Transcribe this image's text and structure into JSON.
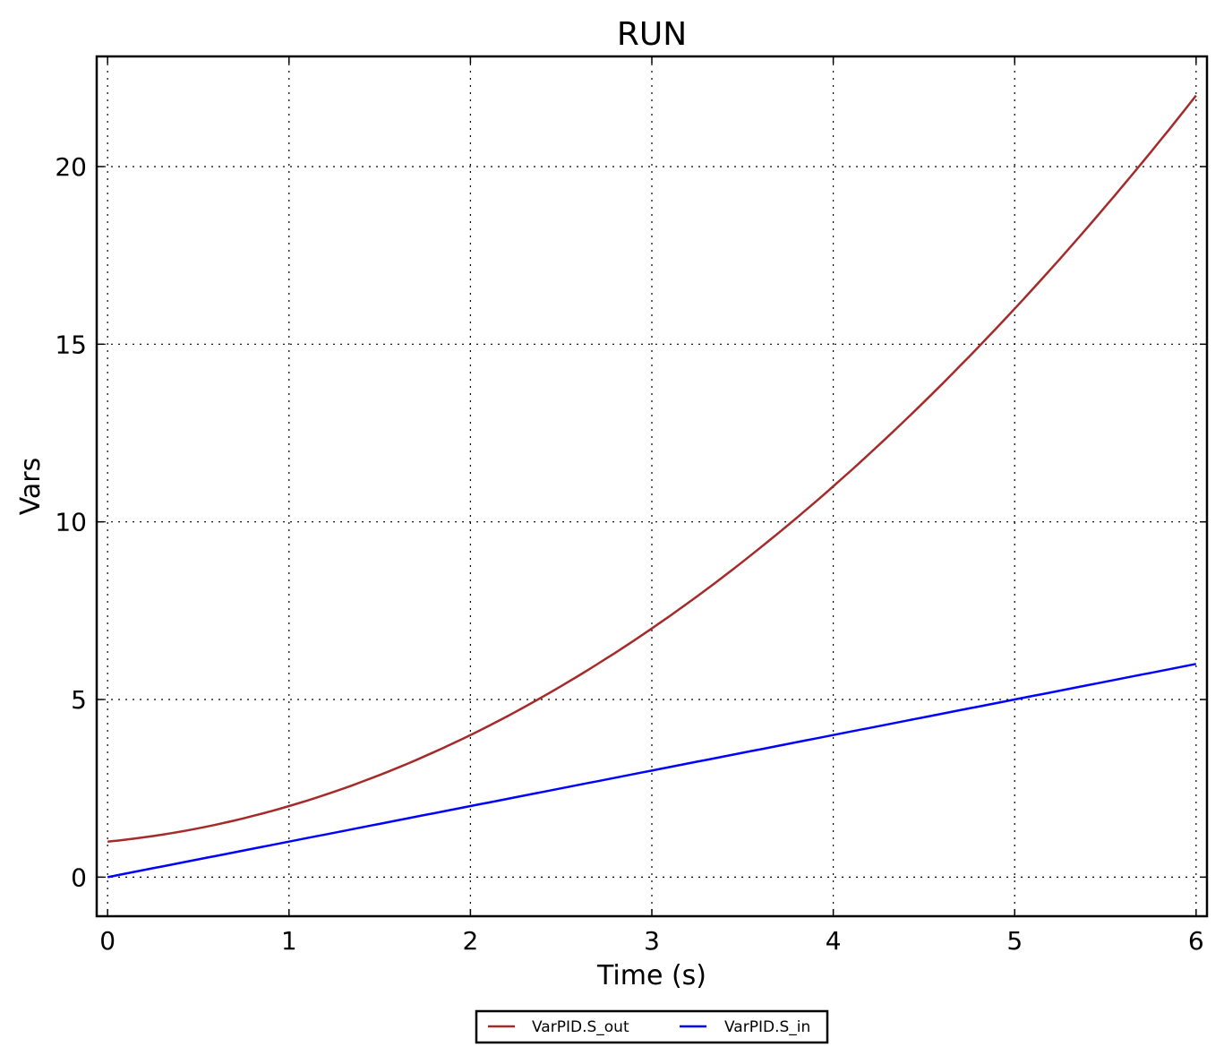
{
  "chart_data": {
    "type": "line",
    "title": "RUN",
    "xlabel": "Time (s)",
    "ylabel": "Vars",
    "xlim": [
      -0.06,
      6.06
    ],
    "ylim": [
      -1.1,
      23.1
    ],
    "xticks": [
      0,
      1,
      2,
      3,
      4,
      5,
      6
    ],
    "yticks": [
      0,
      5,
      10,
      15,
      20
    ],
    "grid": true,
    "legend_placement": "bottom-center-outside",
    "x": [
      0,
      0.5,
      1,
      1.5,
      2,
      2.5,
      3,
      3.5,
      4,
      4.5,
      5,
      5.5,
      6
    ],
    "series": [
      {
        "name": "VarPID.S_out",
        "color": "#a52a2a",
        "values": [
          1,
          1.375,
          2,
          2.875,
          4,
          5.375,
          7,
          8.875,
          11,
          13.375,
          16,
          18.875,
          22
        ]
      },
      {
        "name": "VarPID.S_in",
        "color": "#0000ff",
        "values": [
          0,
          0.5,
          1,
          1.5,
          2,
          2.5,
          3,
          3.5,
          4,
          4.5,
          5,
          5.5,
          6
        ]
      }
    ]
  }
}
